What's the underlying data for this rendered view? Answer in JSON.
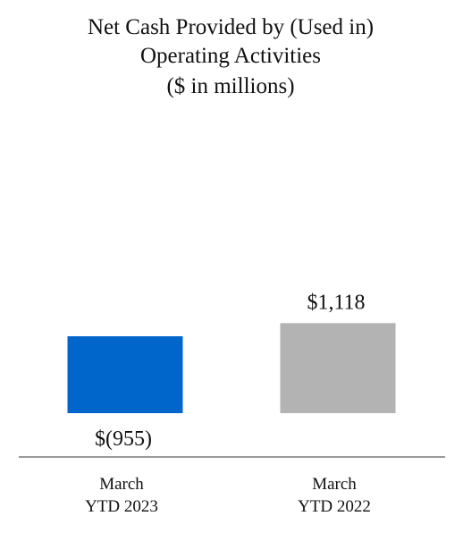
{
  "chart_data": {
    "type": "bar",
    "title_lines": [
      "Net Cash Provided by (Used in)",
      "Operating Activities",
      "($ in millions)"
    ],
    "categories": [
      [
        "March",
        "YTD 2023"
      ],
      [
        "March",
        "YTD 2022"
      ]
    ],
    "values": [
      -955,
      1118
    ],
    "value_labels": [
      "$(955)",
      "$1,118"
    ],
    "colors": [
      "#0066CC",
      "#B3B3B3"
    ],
    "axis_color": "#999999",
    "legend": "none",
    "grid": false
  }
}
